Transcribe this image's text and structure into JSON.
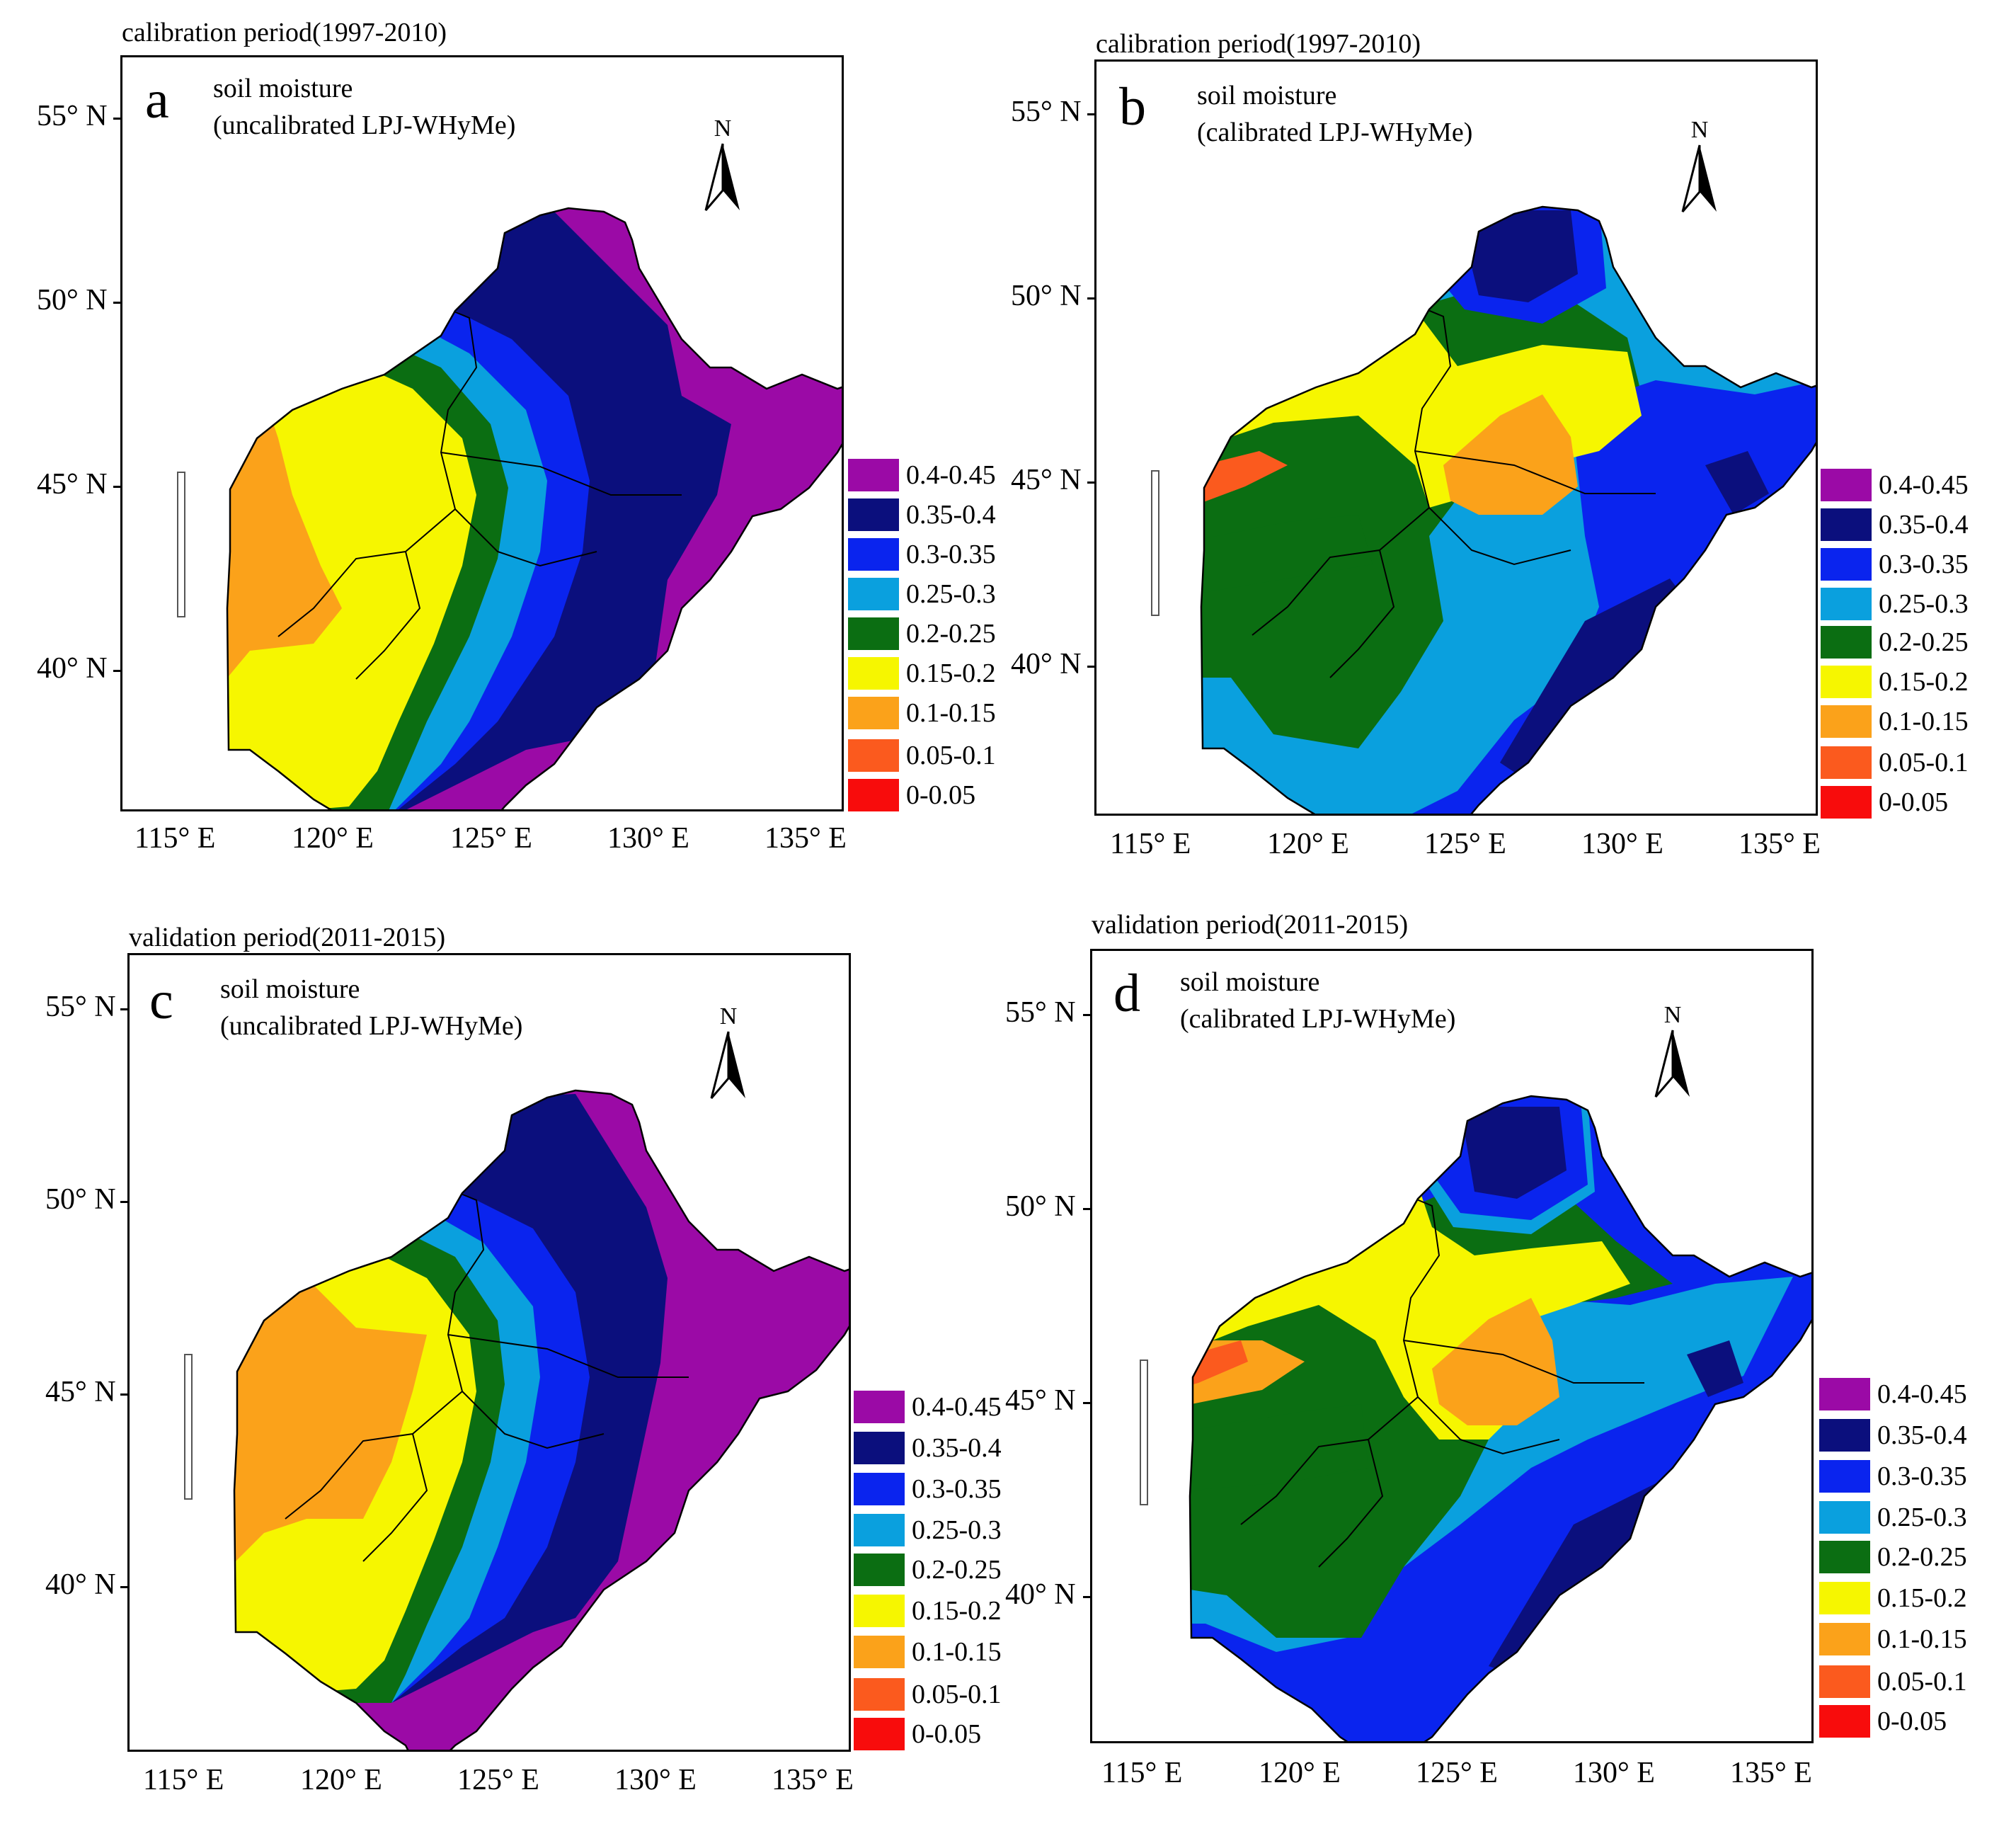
{
  "legend": [
    {
      "label": "0.4-0.45",
      "color": "#9b0aa6"
    },
    {
      "label": "0.35-0.4",
      "color": "#0b0f7d"
    },
    {
      "label": "0.3-0.35",
      "color": "#0a24ee"
    },
    {
      "label": "0.25-0.3",
      "color": "#0aa0de"
    },
    {
      "label": "0.2-0.25",
      "color": "#0b6e12"
    },
    {
      "label": "0.15-0.2",
      "color": "#f6f600"
    },
    {
      "label": "0.1-0.15",
      "color": "#fba21a"
    },
    {
      "label": "0.05-0.1",
      "color": "#fb5a1e"
    },
    {
      "label": "0-0.05",
      "color": "#f80c0c"
    }
  ],
  "axes": {
    "lat_labels": [
      "55° N",
      "50° N",
      "45° N",
      "40° N"
    ],
    "lon_labels": [
      "115° E",
      "120° E",
      "125° E",
      "130° E",
      "135° E"
    ]
  },
  "north_label": "N",
  "panels": [
    {
      "id": "a",
      "period": "calibration period(1997-2010)",
      "title_line1": "soil moisture",
      "title_line2": "(uncalibrated LPJ-WHyMe)"
    },
    {
      "id": "b",
      "period": "calibration period(1997-2010)",
      "title_line1": "soil moisture",
      "title_line2": "(calibrated LPJ-WHyMe)"
    },
    {
      "id": "c",
      "period": "validation period(2011-2015)",
      "title_line1": "soil moisture",
      "title_line2": "(uncalibrated LPJ-WHyMe)"
    },
    {
      "id": "d",
      "period": "validation period(2011-2015)",
      "title_line1": "soil moisture",
      "title_line2": "(calibrated LPJ-WHyMe)"
    }
  ]
}
